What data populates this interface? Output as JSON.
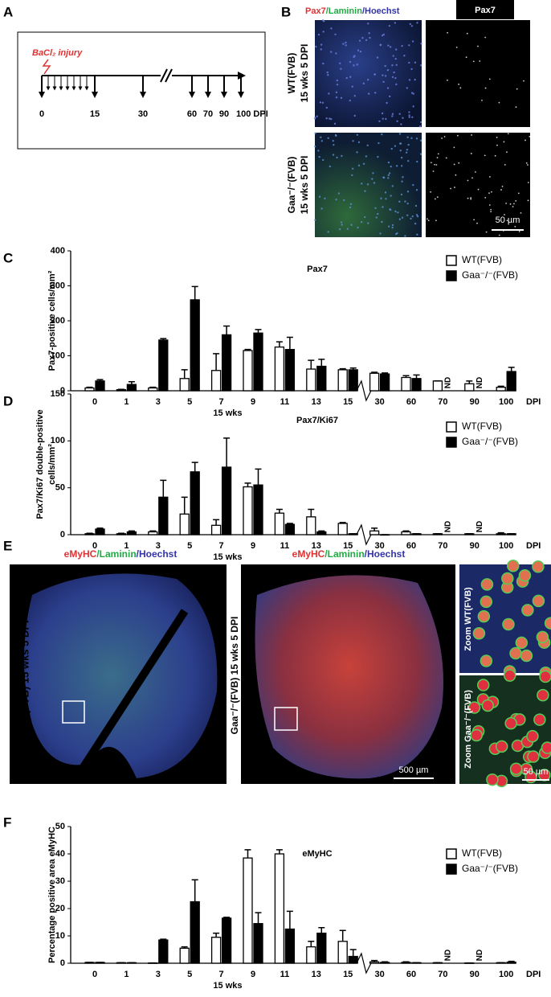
{
  "panel_labels": {
    "a": "A",
    "b": "B",
    "c": "C",
    "d": "D",
    "e": "E",
    "f": "F"
  },
  "timeline": {
    "injury": "BaCl₂ injury",
    "ticks": [
      "0",
      "15",
      "30",
      "60",
      "70",
      "90",
      "100 DPI"
    ]
  },
  "panel_b": {
    "stain": [
      "Pax7",
      "/Laminin",
      "/Hoechst"
    ],
    "channel": "Pax7",
    "rows": [
      [
        "WT(FVB)",
        "15 wks 5 DPI"
      ],
      [
        "Gaa⁻/⁻(FVB)",
        "15 wks 5 DPI"
      ]
    ],
    "scale": "50 µm"
  },
  "panel_e": {
    "stain": [
      "eMyHC",
      "/Laminin",
      "/Hoechst"
    ],
    "labels": [
      "WT(FVB) 15 wks 5 DPI",
      "Gaa⁻/⁻(FVB) 15 wks 5 DPI"
    ],
    "zoom": [
      "Zoom WT(FVB)",
      "Zoom Gaa⁻/⁻(FVB)"
    ],
    "scales": [
      "500 µm",
      "50 µm"
    ]
  },
  "chart_data": [
    {
      "type": "bar",
      "title": "Pax7",
      "ylabel": [
        "Pax7-positive cells/mm²"
      ],
      "xlabel": "15 wks",
      "xunit": "DPI",
      "categories": [
        "0",
        "1",
        "3",
        "5",
        "7",
        "9",
        "11",
        "13",
        "15",
        "30",
        "60",
        "70",
        "90",
        "100"
      ],
      "series": [
        {
          "name": "WT(FVB)",
          "color": "#ffffff",
          "values": [
            8,
            3,
            8,
            35,
            58,
            115,
            125,
            62,
            60,
            50,
            38,
            28,
            20,
            10
          ],
          "errors": [
            2,
            1,
            2,
            25,
            48,
            3,
            15,
            25,
            3,
            3,
            5,
            0,
            8,
            3
          ]
        },
        {
          "name": "Gaa⁻/⁻(FVB)",
          "color": "#000000",
          "values": [
            28,
            18,
            145,
            260,
            160,
            165,
            118,
            70,
            60,
            48,
            35,
            null,
            null,
            55
          ],
          "errors": [
            4,
            8,
            4,
            38,
            25,
            10,
            35,
            20,
            5,
            3,
            10,
            null,
            null,
            12
          ]
        }
      ],
      "annotations": [
        {
          "label": "ND",
          "x": "70"
        },
        {
          "label": "ND",
          "x": "90"
        }
      ],
      "ylim": [
        0,
        400
      ],
      "yticks": [
        0,
        100,
        200,
        300,
        400
      ],
      "legend": "upper right"
    },
    {
      "type": "bar",
      "title": "Pax7/Ki67",
      "ylabel": [
        "Pax7/Ki67 double-positive",
        "cells/mm²"
      ],
      "xlabel": "15 wks",
      "xunit": "DPI",
      "categories": [
        "0",
        "1",
        "3",
        "5",
        "7",
        "9",
        "11",
        "13",
        "15",
        "30",
        "60",
        "70",
        "90",
        "100"
      ],
      "series": [
        {
          "name": "WT(FVB)",
          "color": "#ffffff",
          "values": [
            1,
            1,
            3,
            22,
            10,
            51,
            23,
            19,
            12,
            4,
            3,
            1,
            1,
            1
          ],
          "errors": [
            0.5,
            0.5,
            1,
            18,
            6,
            4,
            4,
            8,
            1,
            3,
            1,
            0,
            0,
            1
          ]
        },
        {
          "name": "Gaa⁻/⁻(FVB)",
          "color": "#000000",
          "values": [
            6,
            3,
            40,
            67,
            72,
            53,
            11,
            3,
            1,
            0,
            1,
            null,
            null,
            1
          ],
          "errors": [
            1,
            1,
            18,
            10,
            31,
            17,
            1,
            1,
            0,
            0,
            0,
            null,
            null,
            0
          ]
        }
      ],
      "annotations": [
        {
          "label": "ND",
          "x": "70"
        },
        {
          "label": "ND",
          "x": "90"
        }
      ],
      "ylim": [
        0,
        150
      ],
      "yticks": [
        0,
        50,
        100,
        150
      ],
      "legend": "upper right"
    },
    {
      "type": "bar",
      "title": "eMyHC",
      "ylabel": [
        "Percentage positive area eMyHC"
      ],
      "xlabel": "15 wks",
      "xunit": "DPI",
      "categories": [
        "0",
        "1",
        "3",
        "5",
        "7",
        "9",
        "11",
        "13",
        "15",
        "30",
        "60",
        "70",
        "90",
        "100"
      ],
      "series": [
        {
          "name": "WT(FVB)",
          "color": "#ffffff",
          "values": [
            0.3,
            0.2,
            0.1,
            5.5,
            9.5,
            38.5,
            40,
            6,
            8,
            0.5,
            0.3,
            0.2,
            0.1,
            0.2
          ],
          "errors": [
            0,
            0,
            0,
            0.5,
            1.5,
            3,
            1.5,
            2,
            4,
            0.5,
            0.2,
            0,
            0,
            0
          ]
        },
        {
          "name": "Gaa⁻/⁻(FVB)",
          "color": "#000000",
          "values": [
            0.3,
            0.2,
            8.5,
            22.5,
            16.5,
            14.5,
            12.5,
            11,
            2.5,
            0.3,
            0.2,
            null,
            null,
            0.4
          ],
          "errors": [
            0,
            0,
            0.3,
            8,
            0.3,
            4,
            6.5,
            2,
            2.5,
            0.2,
            0,
            null,
            null,
            0.3
          ]
        }
      ],
      "annotations": [
        {
          "label": "ND",
          "x": "70"
        },
        {
          "label": "ND",
          "x": "90"
        }
      ],
      "ylim": [
        0,
        50
      ],
      "yticks": [
        0,
        10,
        20,
        30,
        40,
        50
      ],
      "legend": "upper right"
    }
  ]
}
